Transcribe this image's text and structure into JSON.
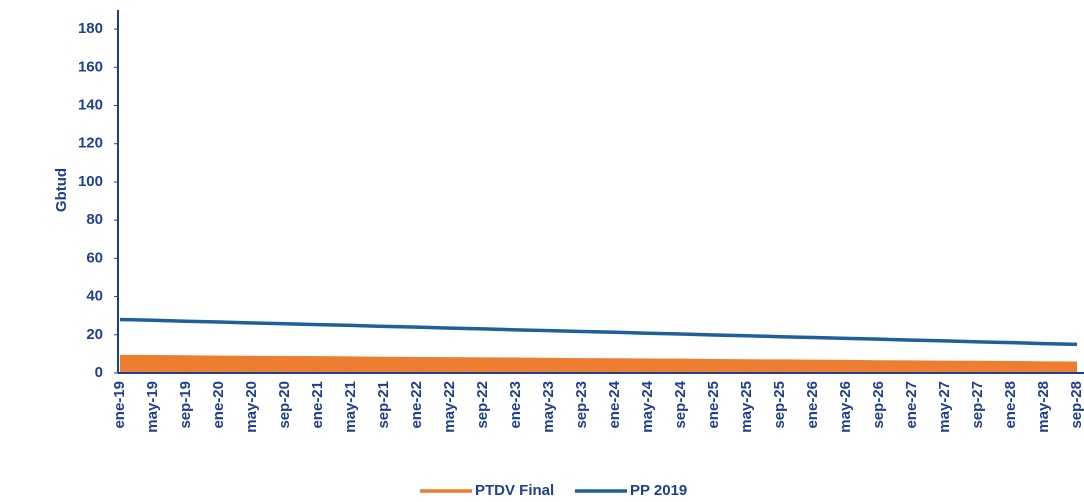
{
  "chart_data": {
    "type": "area-line",
    "ylabel": "Gbtud",
    "categories": [
      "ene-19",
      "may-19",
      "sep-19",
      "ene-20",
      "may-20",
      "sep-20",
      "ene-21",
      "may-21",
      "sep-21",
      "ene-22",
      "may-22",
      "sep-22",
      "ene-23",
      "may-23",
      "sep-23",
      "ene-24",
      "may-24",
      "sep-24",
      "ene-25",
      "may-25",
      "sep-25",
      "ene-26",
      "may-26",
      "sep-26",
      "ene-27",
      "may-27",
      "sep-27",
      "ene-28",
      "may-28",
      "sep-28"
    ],
    "series": [
      {
        "name": "PTDV Final",
        "kind": "area",
        "color": "#ed7d31",
        "values": [
          9.5,
          9.4,
          9.3,
          9.1,
          9.0,
          8.9,
          8.8,
          8.7,
          8.5,
          8.4,
          8.3,
          8.2,
          8.1,
          7.9,
          7.8,
          7.7,
          7.6,
          7.5,
          7.3,
          7.2,
          7.1,
          7.0,
          6.9,
          6.7,
          6.6,
          6.5,
          6.4,
          6.3,
          6.1,
          6.0
        ]
      },
      {
        "name": "PP 2019",
        "kind": "line",
        "color": "#1f5f9a",
        "values": [
          28,
          27.6,
          27.1,
          26.7,
          26.2,
          25.8,
          25.3,
          24.9,
          24.4,
          24.0,
          23.5,
          23.1,
          22.6,
          22.2,
          21.7,
          21.3,
          20.8,
          20.4,
          19.9,
          19.5,
          19.0,
          18.6,
          18.1,
          17.7,
          17.2,
          16.8,
          16.3,
          15.9,
          15.4,
          15.0
        ]
      }
    ],
    "ylim": [
      0,
      190
    ],
    "yticks": [
      0,
      20,
      40,
      60,
      80,
      100,
      120,
      140,
      160,
      180
    ],
    "grid": false,
    "legend": "bottom"
  }
}
